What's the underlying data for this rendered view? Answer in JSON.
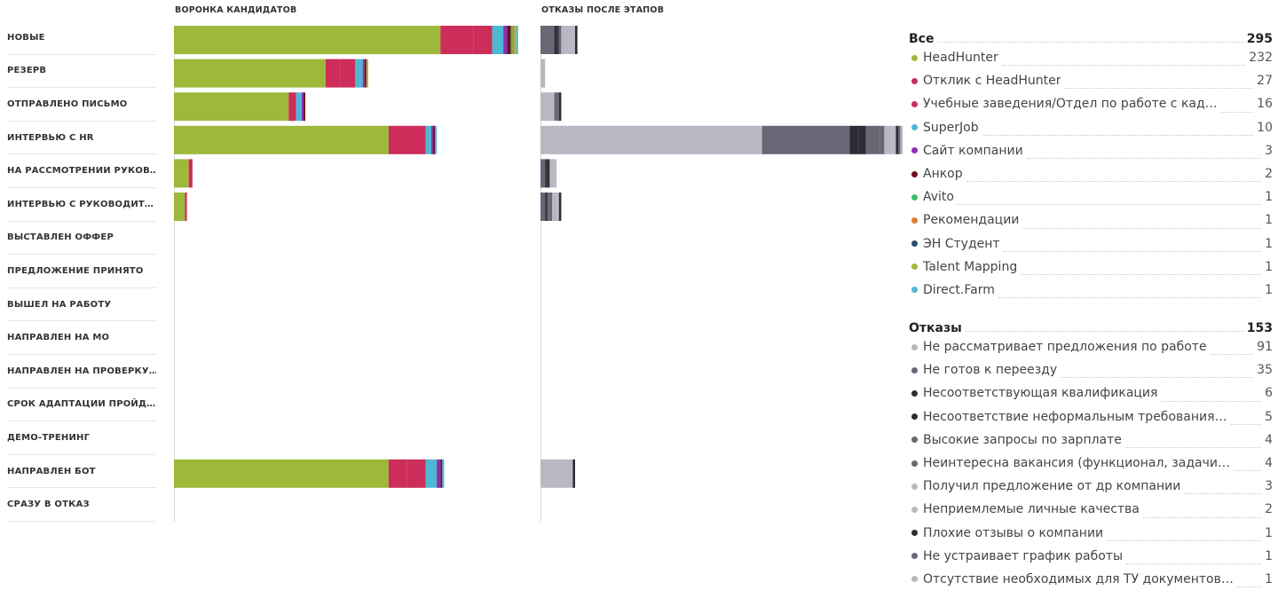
{
  "chart_data": [
    {
      "type": "bar",
      "title": "ВОРОНКА КАНДИДАТОВ",
      "orientation": "horizontal-stacked",
      "categories": [
        "НОВЫЕ",
        "РЕЗЕРВ",
        "ОТПРАВЛЕНО ПИСЬМО",
        "ИНТЕРВЬЮ С HR",
        "НА РАССМОТРЕНИИ РУКОВ…",
        "ИНТЕРВЬЮ С РУКОВОДИТ…",
        "ВЫСТАВЛЕН ОФФЕР",
        "ПРЕДЛОЖЕНИЕ ПРИНЯТО",
        "ВЫШЕЛ НА РАБОТУ",
        "НАПРАВЛЕН НА МО",
        "НАПРАВЛЕН НА ПРОВЕРКУ…",
        "СРОК АДАПТАЦИИ ПРОЙД…",
        "ДЕМО-ТРЕНИНГ",
        "НАПРАВЛЕН БОТ",
        "СРАЗУ В ОТКАЗ"
      ],
      "series": [
        {
          "name": "HeadHunter",
          "color": "#9db83a",
          "values": [
            72,
            41,
            31,
            58,
            4,
            3,
            0,
            0,
            0,
            0,
            0,
            0,
            0,
            58,
            0
          ]
        },
        {
          "name": "Отклик с HeadHunter",
          "color": "#cc2d5a",
          "values": [
            9,
            4,
            2,
            7,
            1,
            0.5,
            0,
            0,
            0,
            0,
            0,
            0,
            0,
            5,
            0
          ]
        },
        {
          "name": "Учебные заведения/Отдел по работе с кад…",
          "color": "#cc2d5a",
          "values": [
            5,
            4,
            0,
            3,
            0,
            0,
            0,
            0,
            0,
            0,
            0,
            0,
            0,
            5,
            0
          ]
        },
        {
          "name": "SuperJob",
          "color": "#4db8d4",
          "values": [
            3,
            2,
            1.5,
            1.5,
            0,
            0,
            0,
            0,
            0,
            0,
            0,
            0,
            0,
            3,
            0
          ]
        },
        {
          "name": "Сайт компании",
          "color": "#8b2fb5",
          "values": [
            1,
            0.5,
            0.5,
            0.5,
            0,
            0,
            0,
            0,
            0,
            0,
            0,
            0,
            0,
            1,
            0
          ]
        },
        {
          "name": "Анкор",
          "color": "#6e1020",
          "values": [
            1,
            0.5,
            0.5,
            0.5,
            0,
            0,
            0,
            0,
            0,
            0,
            0,
            0,
            0,
            0.5,
            0
          ]
        },
        {
          "name": "Avito",
          "color": "#3fbf6f",
          "values": [
            0.5,
            0,
            0,
            0,
            0,
            0,
            0,
            0,
            0,
            0,
            0,
            0,
            0,
            0,
            0
          ]
        },
        {
          "name": "Рекомендации",
          "color": "#e07a2e",
          "values": [
            0.5,
            0,
            0,
            0,
            0,
            0,
            0,
            0,
            0,
            0,
            0,
            0,
            0,
            0,
            0
          ]
        },
        {
          "name": "ЭН Студент",
          "color": "#2b4a66",
          "values": [
            0,
            0,
            0,
            0,
            0,
            0,
            0,
            0,
            0,
            0,
            0,
            0,
            0,
            0,
            0
          ]
        },
        {
          "name": "Talent Mapping",
          "color": "#9db83a",
          "values": [
            0.5,
            0.5,
            0,
            0,
            0,
            0,
            0,
            0,
            0,
            0,
            0,
            0,
            0,
            0,
            0
          ]
        },
        {
          "name": "Direct.Farm",
          "color": "#4db8d4",
          "values": [
            0.5,
            0,
            0,
            0.5,
            0,
            0,
            0,
            0,
            0,
            0,
            0,
            0,
            0,
            0.5,
            0
          ]
        }
      ]
    },
    {
      "type": "bar",
      "title": "ОТКАЗЫ ПОСЛЕ ЭТАПОВ",
      "orientation": "horizontal-stacked",
      "categories": [
        "НОВЫЕ",
        "РЕЗЕРВ",
        "ОТПРАВЛЕНО ПИСЬМО",
        "ИНТЕРВЬЮ С HR",
        "НА РАССМОТРЕНИИ РУКОВ…",
        "ИНТЕРВЬЮ С РУКОВОДИТ…",
        "ВЫСТАВЛЕН ОФФЕР",
        "ПРЕДЛОЖЕНИЕ ПРИНЯТО",
        "ВЫШЕЛ НА РАБОТУ",
        "НАПРАВЛЕН НА МО",
        "НАПРАВЛЕН НА ПРОВЕРКУ…",
        "СРОК АДАПТАЦИИ ПРОЙД…",
        "ДЕМО-ТРЕНИНГ",
        "НАПРАВЛЕН БОТ",
        "СРАЗУ В ОТКАЗ"
      ],
      "series": [
        {
          "name": "Не рассматривает предложения по работе",
          "color": "#b9b7c1",
          "values": [
            0,
            1,
            3,
            48,
            0,
            0,
            0,
            0,
            0,
            0,
            0,
            0,
            0,
            7,
            0
          ]
        },
        {
          "name": "Не готов к переезду",
          "color": "#6a6675",
          "values": [
            3,
            0,
            1,
            19,
            1,
            1,
            0,
            0,
            0,
            0,
            0,
            0,
            0,
            0,
            0
          ]
        },
        {
          "name": "Несоответствующая квалификация",
          "color": "#2d2b33",
          "values": [
            0.5,
            0,
            0.5,
            2,
            0.5,
            0.5,
            0,
            0,
            0,
            0,
            0,
            0,
            0,
            0.5,
            0
          ]
        },
        {
          "name": "Несоответствие неформальным требования…",
          "color": "#2d2b33",
          "values": [
            0.5,
            0,
            0,
            1.5,
            0.5,
            0,
            0,
            0,
            0,
            0,
            0,
            0,
            0,
            0,
            0
          ]
        },
        {
          "name": "Высокие запросы по зарплате",
          "color": "#6a6675",
          "values": [
            0,
            0,
            0,
            3,
            0,
            0.5,
            0,
            0,
            0,
            0,
            0,
            0,
            0,
            0,
            0
          ]
        },
        {
          "name": "Неинтересна вакансия (функционал, задачи…",
          "color": "#6a6675",
          "values": [
            0.5,
            0,
            0,
            1,
            0,
            0.5,
            0,
            0,
            0,
            0,
            0,
            0,
            0,
            0,
            0
          ]
        },
        {
          "name": "Получил предложение от др компании",
          "color": "#b9b7c1",
          "values": [
            3,
            0,
            0,
            1.5,
            1,
            1,
            0,
            0,
            0,
            0,
            0,
            0,
            0,
            0,
            0
          ]
        },
        {
          "name": "Неприемлемые личные качества",
          "color": "#b9b7c1",
          "values": [
            0,
            0,
            0,
            1,
            0.5,
            0.5,
            0,
            0,
            0,
            0,
            0,
            0,
            0,
            0,
            0
          ]
        },
        {
          "name": "Плохие отзывы о компании",
          "color": "#2d2b33",
          "values": [
            0.5,
            0,
            0,
            0.5,
            0,
            0.5,
            0,
            0,
            0,
            0,
            0,
            0,
            0,
            0,
            0
          ]
        },
        {
          "name": "Не устраивает график работы",
          "color": "#6a6675",
          "values": [
            0,
            0,
            0,
            0.5,
            0,
            0,
            0,
            0,
            0,
            0,
            0,
            0,
            0,
            0,
            0
          ]
        },
        {
          "name": "Отсутствие необходимых для ТУ документов…",
          "color": "#b9b7c1",
          "values": [
            0,
            0,
            0,
            0.5,
            0,
            0,
            0,
            0,
            0,
            0,
            0,
            0,
            0,
            0,
            0
          ]
        }
      ]
    }
  ],
  "legend_sources": {
    "title": "Все",
    "total": "295",
    "items": [
      {
        "label": "HeadHunter",
        "value": "232",
        "color": "#9db83a"
      },
      {
        "label": "Отклик с HeadHunter",
        "value": "27",
        "color": "#cc2d5a"
      },
      {
        "label": "Учебные заведения/Отдел по работе с кад…",
        "value": "16",
        "color": "#cc2d5a"
      },
      {
        "label": "SuperJob",
        "value": "10",
        "color": "#4db8d4"
      },
      {
        "label": "Сайт компании",
        "value": "3",
        "color": "#8b2fb5"
      },
      {
        "label": "Анкор",
        "value": "2",
        "color": "#6e1020"
      },
      {
        "label": "Avito",
        "value": "1",
        "color": "#3fbf6f"
      },
      {
        "label": "Рекомендации",
        "value": "1",
        "color": "#e07a2e"
      },
      {
        "label": "ЭН Студент",
        "value": "1",
        "color": "#2b4a66"
      },
      {
        "label": "Talent Mapping",
        "value": "1",
        "color": "#9db83a"
      },
      {
        "label": "Direct.Farm",
        "value": "1",
        "color": "#4db8d4"
      }
    ]
  },
  "legend_rejects": {
    "title": "Отказы",
    "total": "153",
    "items": [
      {
        "label": "Не рассматривает предложения по работе",
        "value": "91",
        "color": "#b9b7c1"
      },
      {
        "label": "Не готов к переезду",
        "value": "35",
        "color": "#6a6675"
      },
      {
        "label": "Несоответствующая квалификация",
        "value": "6",
        "color": "#2d2b33"
      },
      {
        "label": "Несоответствие неформальным требования…",
        "value": "5",
        "color": "#2d2b33"
      },
      {
        "label": "Высокие запросы по зарплате",
        "value": "4",
        "color": "#6a6675"
      },
      {
        "label": "Неинтересна вакансия (функционал, задачи…",
        "value": "4",
        "color": "#6a6675"
      },
      {
        "label": "Получил предложение от др компании",
        "value": "3",
        "color": "#b9b7c1"
      },
      {
        "label": "Неприемлемые личные качества",
        "value": "2",
        "color": "#b9b7c1"
      },
      {
        "label": "Плохие отзывы о компании",
        "value": "1",
        "color": "#2d2b33"
      },
      {
        "label": "Не устраивает график работы",
        "value": "1",
        "color": "#6a6675"
      },
      {
        "label": "Отсутствие необходимых для ТУ документов…",
        "value": "1",
        "color": "#b9b7c1"
      }
    ]
  }
}
